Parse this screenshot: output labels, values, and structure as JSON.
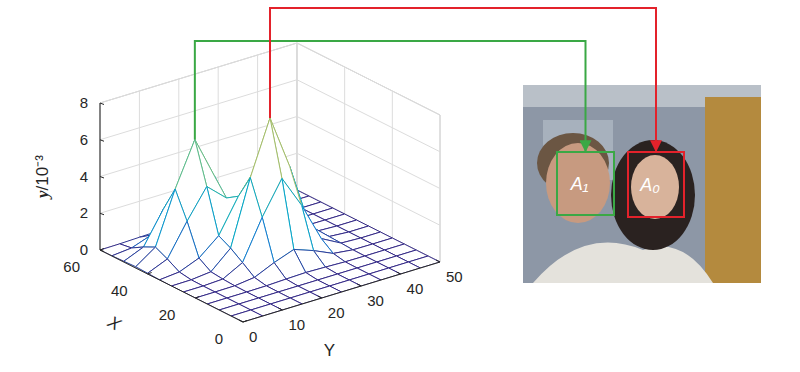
{
  "chart_data": {
    "type": "surface",
    "x_label": "X",
    "y_label": "Y",
    "z_label": "y/10⁻³",
    "x": [
      0,
      5,
      10,
      15,
      20,
      25,
      30,
      35,
      40,
      45,
      50,
      55,
      60
    ],
    "y": [
      0,
      5,
      10,
      15,
      20,
      25,
      30,
      35,
      40,
      45,
      50
    ],
    "z": [
      [
        0,
        0,
        0,
        0,
        0,
        0,
        0,
        0,
        0,
        0,
        0
      ],
      [
        0,
        0,
        0,
        0,
        0,
        0,
        0,
        0,
        0,
        0,
        0
      ],
      [
        0,
        0,
        0,
        0,
        0,
        0,
        0,
        0,
        0,
        0,
        0
      ],
      [
        0,
        0,
        0,
        0.01,
        0.05,
        0.08,
        0.05,
        0.01,
        0,
        0,
        0
      ],
      [
        0,
        0,
        0.01,
        0.14,
        0.62,
        1.01,
        0.62,
        0.14,
        0.01,
        0,
        0
      ],
      [
        0,
        0,
        0.05,
        0.62,
        2.76,
        4.55,
        2.76,
        0.62,
        0.05,
        0,
        0
      ],
      [
        0,
        0.01,
        0.12,
        1.08,
        4.59,
        7.51,
        4.55,
        1.01,
        0.08,
        0,
        0
      ],
      [
        0.01,
        0.11,
        0.54,
        1.43,
        3.25,
        4.66,
        2.77,
        0.62,
        0.05,
        0,
        0
      ],
      [
        0.04,
        0.49,
        2.22,
        3.78,
        2.83,
        1.5,
        0.66,
        0.14,
        0.01,
        0,
        0
      ],
      [
        0.07,
        0.81,
        3.64,
        6.01,
        3.69,
        0.89,
        0.12,
        0.01,
        0,
        0,
        0
      ],
      [
        0.04,
        0.49,
        2.21,
        3.64,
        2.21,
        0.49,
        0.04,
        0,
        0,
        0,
        0
      ],
      [
        0.01,
        0.11,
        0.49,
        0.81,
        0.49,
        0.11,
        0.01,
        0,
        0,
        0,
        0
      ],
      [
        0,
        0.01,
        0.04,
        0.07,
        0.04,
        0.01,
        0,
        0,
        0,
        0,
        0
      ]
    ],
    "xlim": [
      0,
      60
    ],
    "xticks": [
      0,
      20,
      40,
      60
    ],
    "ylim": [
      0,
      50
    ],
    "yticks": [
      0,
      10,
      20,
      30,
      40,
      50
    ],
    "zlim": [
      0,
      8
    ],
    "zticks": [
      0,
      2,
      4,
      6,
      8
    ],
    "grid": true,
    "annotations": [
      {
        "text": "A₁",
        "color": "#3aa845",
        "x": 45,
        "y": 15
      },
      {
        "text": "A₀",
        "color": "#e3222b",
        "x": 30,
        "y": 25
      }
    ]
  }
}
